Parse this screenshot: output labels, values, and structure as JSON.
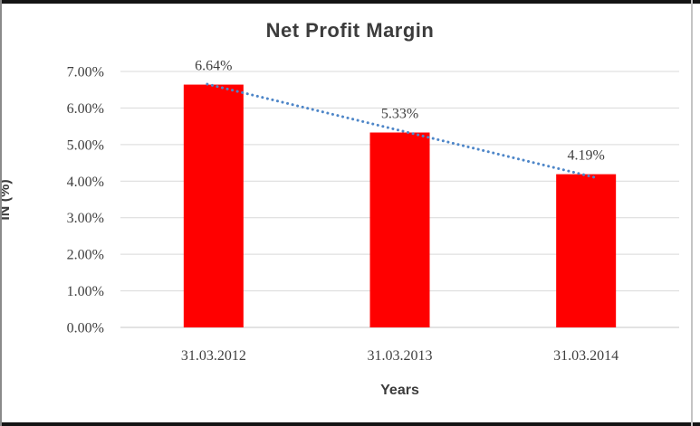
{
  "figure": {
    "title": "Net Profit Margin",
    "y_axis_title": "IN (%)",
    "x_axis_title": "Years"
  },
  "chart_data": {
    "type": "bar",
    "title": "Net Profit Margin",
    "xlabel": "Years",
    "ylabel": "IN (%)",
    "categories": [
      "31.03.2012",
      "31.03.2013",
      "31.03.2014"
    ],
    "values": [
      6.64,
      5.33,
      4.19
    ],
    "data_labels": [
      "6.64%",
      "5.33%",
      "4.19%"
    ],
    "ylim": [
      0,
      7
    ],
    "ytick_step": 1,
    "ytick_labels": [
      "0.00%",
      "1.00%",
      "2.00%",
      "3.00%",
      "4.00%",
      "5.00%",
      "6.00%",
      "7.00%"
    ],
    "grid": "horizontal-only",
    "legend": "none",
    "bar_color": "#FF0000",
    "trendline": {
      "type": "linear",
      "style": "dotted",
      "color": "#4E86C8"
    },
    "colors": {
      "gridline": "#D9D9D9",
      "axis_line": "#C6C6C6",
      "label_text": "#404040",
      "title_text": "#3C3C3C"
    }
  }
}
